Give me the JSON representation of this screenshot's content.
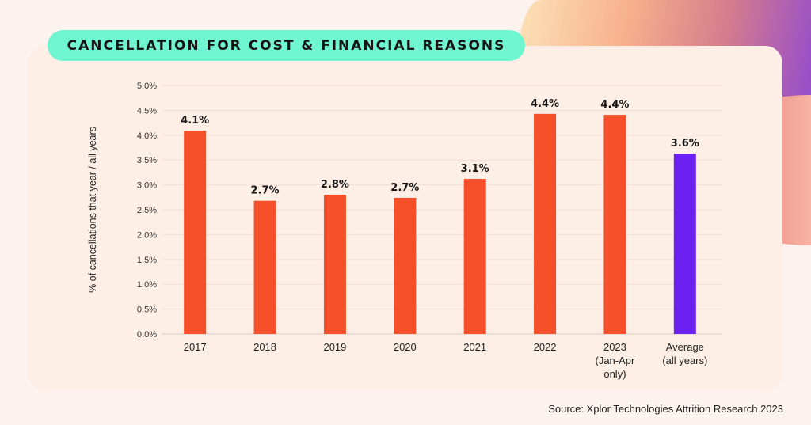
{
  "title": "CANCELLATION FOR COST & FINANCIAL REASONS",
  "source": "Source: Xplor Technologies Attrition Research 2023",
  "colors": {
    "bar": "#f5502a",
    "average_bar": "#6b21f0",
    "title_pill": "#6ff5cf",
    "card": "#fdeee6"
  },
  "chart_data": {
    "type": "bar",
    "title": "CANCELLATION FOR COST & FINANCIAL REASONS",
    "xlabel": "",
    "ylabel": "% of cancellations that year / all years",
    "ylim": [
      0,
      5
    ],
    "yticks": [
      "0.0%",
      "0.5%",
      "1.0%",
      "1.5%",
      "2.0%",
      "2.5%",
      "3.0%",
      "3.5%",
      "4.0%",
      "4.5%",
      "5.0%"
    ],
    "grid": true,
    "categories": [
      [
        "2017"
      ],
      [
        "2018"
      ],
      [
        "2019"
      ],
      [
        "2020"
      ],
      [
        "2021"
      ],
      [
        "2022"
      ],
      [
        "2023",
        "(Jan-Apr",
        "only)"
      ],
      [
        "Average",
        "(all years)"
      ]
    ],
    "values": [
      4.09,
      2.68,
      2.8,
      2.74,
      3.12,
      4.43,
      4.41,
      3.63
    ],
    "data_labels": [
      "4.1%",
      "2.7%",
      "2.8%",
      "2.7%",
      "3.1%",
      "4.4%",
      "4.4%",
      "3.6%"
    ],
    "highlight_index": 7
  }
}
